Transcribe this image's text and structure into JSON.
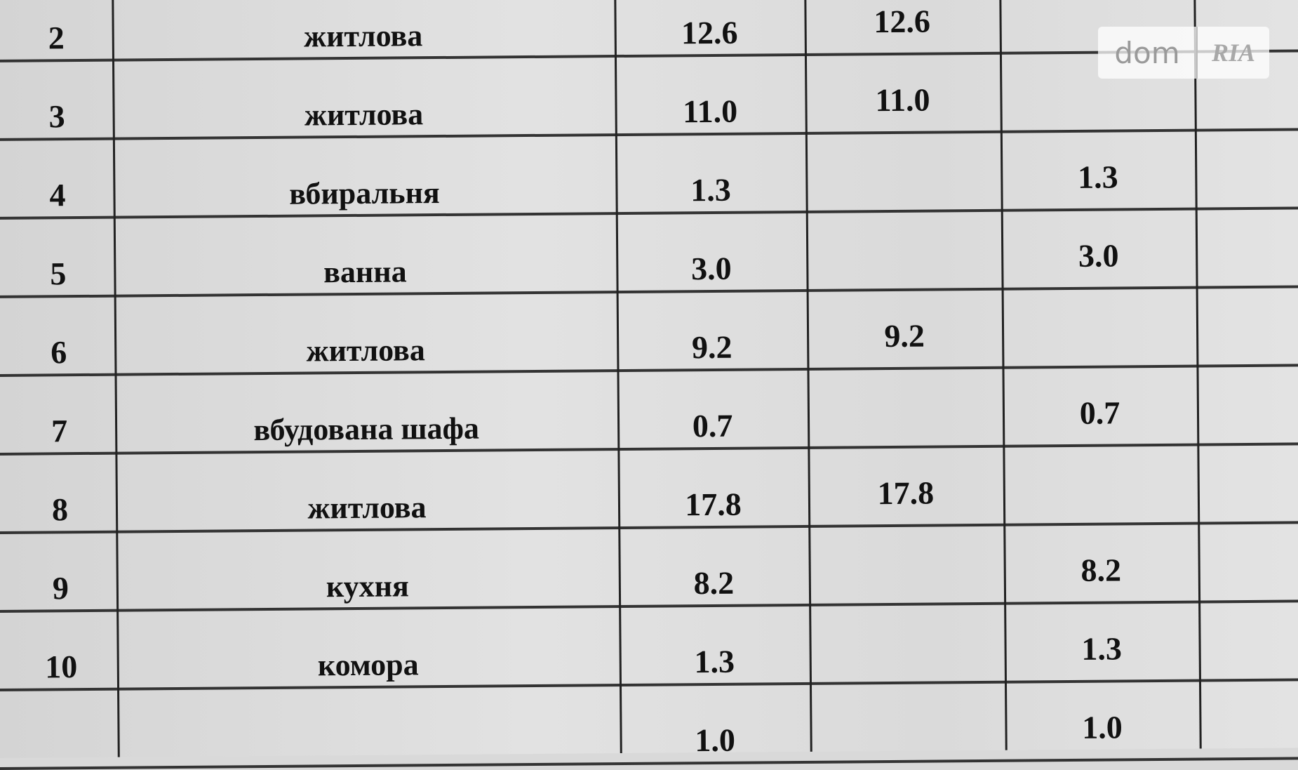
{
  "rows": [
    {
      "no": "2",
      "name": "житлова",
      "total": "12.6",
      "living": "12.6",
      "aux": ""
    },
    {
      "no": "3",
      "name": "житлова",
      "total": "11.0",
      "living": "11.0",
      "aux": ""
    },
    {
      "no": "4",
      "name": "вбиральня",
      "total": "1.3",
      "living": "",
      "aux": "1.3"
    },
    {
      "no": "5",
      "name": "ванна",
      "total": "3.0",
      "living": "",
      "aux": "3.0"
    },
    {
      "no": "6",
      "name": "житлова",
      "total": "9.2",
      "living": "9.2",
      "aux": ""
    },
    {
      "no": "7",
      "name": "вбудована шафа",
      "total": "0.7",
      "living": "",
      "aux": "0.7"
    },
    {
      "no": "8",
      "name": "житлова",
      "total": "17.8",
      "living": "17.8",
      "aux": ""
    },
    {
      "no": "9",
      "name": "кухня",
      "total": "8.2",
      "living": "",
      "aux": "8.2"
    },
    {
      "no": "10",
      "name": "комора",
      "total": "1.3",
      "living": "",
      "aux": "1.3"
    },
    {
      "no": "",
      "name": "",
      "total": "1.0",
      "living": "",
      "aux": "1.0"
    }
  ],
  "watermark": {
    "dom": "dom",
    "ria": "RIA"
  }
}
